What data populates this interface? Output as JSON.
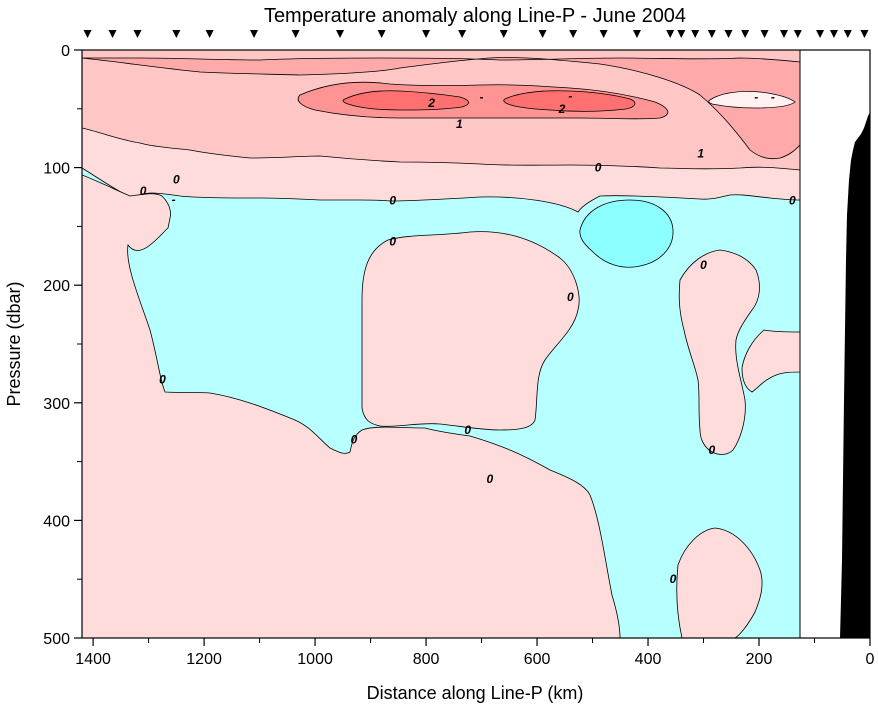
{
  "chart_data": {
    "type": "heatmap",
    "subtype": "contour-section",
    "title": "Temperature anomaly along Line-P - June 2004",
    "xlabel": "Distance along Line-P (km)",
    "ylabel": "Pressure (dbar)",
    "xlim": [
      1420,
      0
    ],
    "ylim": [
      0,
      500
    ],
    "y_inverted": true,
    "x_ticks": [
      1400,
      1200,
      1000,
      800,
      600,
      400,
      200,
      0
    ],
    "y_ticks": [
      0,
      100,
      200,
      300,
      400,
      500
    ],
    "x_tick_labels": [
      "1400",
      "1200",
      "1000",
      "800",
      "600",
      "400",
      "200",
      "0"
    ],
    "y_tick_labels": [
      "0",
      "100",
      "200",
      "300",
      "400",
      "500"
    ],
    "data_extent_km": 125,
    "station_km": [
      1410,
      1365,
      1320,
      1250,
      1190,
      1110,
      1035,
      955,
      880,
      800,
      735,
      660,
      590,
      535,
      480,
      420,
      360,
      340,
      315,
      285,
      255,
      225,
      190,
      155,
      130,
      90,
      65,
      40,
      10
    ],
    "contour_levels": [
      -1,
      0,
      1,
      1.5,
      2,
      2.5
    ],
    "colors": {
      "negative": "#b8ffff",
      "strong_negative": "#8cffff",
      "zero_to_half": "#ffdcdc",
      "half_to_one": "#ffc6c6",
      "one_to_onehalf": "#ffaaaa",
      "onehalf_to_two": "#ff9494",
      "above_two": "#ff7070",
      "bathymetry": "#000000"
    },
    "contour_labels": [
      {
        "text": "0",
        "km": 1250,
        "dbar": 110
      },
      {
        "text": "0",
        "km": 1310,
        "dbar": 120
      },
      {
        "text": "-",
        "km": 1255,
        "dbar": 127
      },
      {
        "text": "0",
        "km": 860,
        "dbar": 128
      },
      {
        "text": "0",
        "km": 860,
        "dbar": 163
      },
      {
        "text": "0",
        "km": 490,
        "dbar": 100
      },
      {
        "text": "0",
        "km": 140,
        "dbar": 128
      },
      {
        "text": "0",
        "km": 1275,
        "dbar": 280
      },
      {
        "text": "0",
        "km": 930,
        "dbar": 331
      },
      {
        "text": "0",
        "km": 725,
        "dbar": 323
      },
      {
        "text": "0",
        "km": 685,
        "dbar": 365
      },
      {
        "text": "0",
        "km": 540,
        "dbar": 210
      },
      {
        "text": "0",
        "km": 300,
        "dbar": 183
      },
      {
        "text": "0",
        "km": 285,
        "dbar": 340
      },
      {
        "text": "0",
        "km": 355,
        "dbar": 450
      },
      {
        "text": "1",
        "km": 740,
        "dbar": 63
      },
      {
        "text": "1",
        "km": 305,
        "dbar": 88
      },
      {
        "text": "2",
        "km": 790,
        "dbar": 45
      },
      {
        "text": "2",
        "km": 555,
        "dbar": 50
      },
      {
        "text": "-",
        "km": 700,
        "dbar": 40
      },
      {
        "text": "-",
        "km": 540,
        "dbar": 39
      },
      {
        "text": "-",
        "km": 205,
        "dbar": 40
      },
      {
        "text": "-",
        "km": 175,
        "dbar": 40
      }
    ]
  }
}
